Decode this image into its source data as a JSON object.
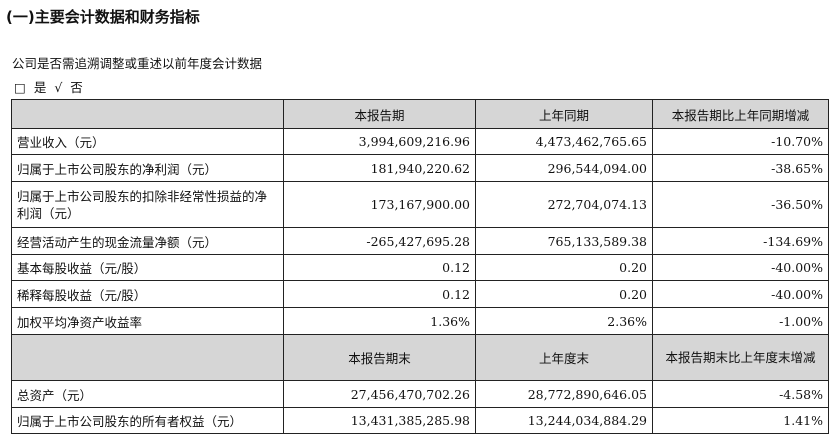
{
  "heading": "(一)主要会计数据和财务指标",
  "question": "公司是否需追溯调整或重述以前年度会计数据",
  "choice": {
    "yes_box": "□",
    "yes_label": "是",
    "no_mark": "√",
    "no_label": "否"
  },
  "table1": {
    "headers": [
      "",
      "本报告期",
      "上年同期",
      "本报告期比上年同期增减"
    ],
    "rows": [
      {
        "label": "营业收入（元）",
        "current": "3,994,609,216.96",
        "prior": "4,473,462,765.65",
        "change": "-10.70%"
      },
      {
        "label": "归属于上市公司股东的净利润（元）",
        "current": "181,940,220.62",
        "prior": "296,544,094.00",
        "change": "-38.65%"
      },
      {
        "label": "归属于上市公司股东的扣除非经常性损益的净利润（元）",
        "current": "173,167,900.00",
        "prior": "272,704,074.13",
        "change": "-36.50%"
      },
      {
        "label": "经营活动产生的现金流量净额（元）",
        "current": "-265,427,695.28",
        "prior": "765,133,589.38",
        "change": "-134.69%"
      },
      {
        "label": "基本每股收益（元/股）",
        "current": "0.12",
        "prior": "0.20",
        "change": "-40.00%"
      },
      {
        "label": "稀释每股收益（元/股）",
        "current": "0.12",
        "prior": "0.20",
        "change": "-40.00%"
      },
      {
        "label": "加权平均净资产收益率",
        "current": "1.36%",
        "prior": "2.36%",
        "change": "-1.00%"
      }
    ]
  },
  "table2": {
    "headers": [
      "",
      "本报告期末",
      "上年度末",
      "本报告期末比上年度末增减"
    ],
    "rows": [
      {
        "label": "总资产（元）",
        "current": "27,456,470,702.26",
        "prior": "28,772,890,646.05",
        "change": "-4.58%"
      },
      {
        "label": "归属于上市公司股东的所有者权益（元）",
        "current": "13,431,385,285.98",
        "prior": "13,244,034,884.29",
        "change": "1.41%"
      }
    ]
  }
}
